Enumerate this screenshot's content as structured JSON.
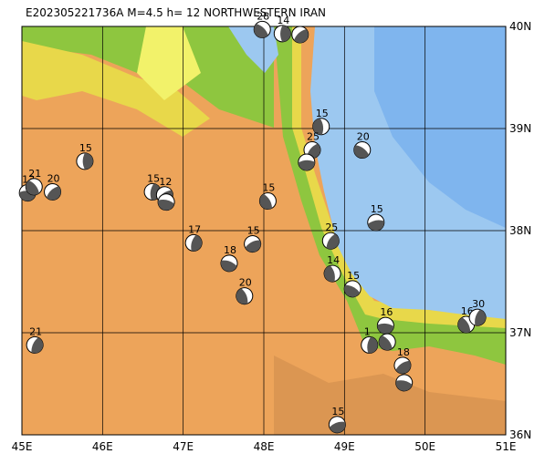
{
  "title": "E202305221736A  M=4.5  h=  12 NORTHWESTERN IRAN",
  "map": {
    "xlim": [
      45,
      51
    ],
    "ylim": [
      36,
      40
    ],
    "xticks": [
      {
        "value": 45,
        "label": "45E"
      },
      {
        "value": 46,
        "label": "46E"
      },
      {
        "value": 47,
        "label": "47E"
      },
      {
        "value": 48,
        "label": "48E"
      },
      {
        "value": 49,
        "label": "49E"
      },
      {
        "value": 50,
        "label": "50E"
      },
      {
        "value": 51,
        "label": "51E"
      }
    ],
    "yticks": [
      {
        "value": 36,
        "label": "36N"
      },
      {
        "value": 37,
        "label": "37N"
      },
      {
        "value": 38,
        "label": "38N"
      },
      {
        "value": 39,
        "label": "39N"
      },
      {
        "value": 40,
        "label": "40N"
      }
    ],
    "events": [
      {
        "lon": 45.78,
        "lat": 38.68,
        "label": "15"
      },
      {
        "lon": 45.38,
        "lat": 38.38,
        "label": "20"
      },
      {
        "lon": 45.07,
        "lat": 38.37,
        "label": "13"
      },
      {
        "lon": 45.15,
        "lat": 38.43,
        "label": "21"
      },
      {
        "lon": 46.62,
        "lat": 38.38,
        "label": "15"
      },
      {
        "lon": 46.77,
        "lat": 38.35,
        "label": "12"
      },
      {
        "lon": 46.79,
        "lat": 38.28,
        "label": null
      },
      {
        "lon": 48.05,
        "lat": 38.29,
        "label": "15"
      },
      {
        "lon": 47.13,
        "lat": 37.88,
        "label": "17"
      },
      {
        "lon": 47.86,
        "lat": 37.87,
        "label": "15"
      },
      {
        "lon": 47.57,
        "lat": 37.68,
        "label": "18"
      },
      {
        "lon": 47.76,
        "lat": 37.36,
        "label": "20"
      },
      {
        "lon": 45.16,
        "lat": 36.88,
        "label": "21"
      },
      {
        "lon": 48.91,
        "lat": 36.1,
        "label": "15"
      },
      {
        "lon": 49.1,
        "lat": 37.43,
        "label": "15"
      },
      {
        "lon": 48.85,
        "lat": 37.58,
        "label": "14"
      },
      {
        "lon": 48.83,
        "lat": 37.9,
        "label": "25"
      },
      {
        "lon": 49.39,
        "lat": 38.08,
        "label": "15"
      },
      {
        "lon": 49.22,
        "lat": 38.79,
        "label": "20"
      },
      {
        "lon": 48.71,
        "lat": 39.02,
        "label": "15"
      },
      {
        "lon": 48.6,
        "lat": 38.79,
        "label": "25"
      },
      {
        "lon": 48.53,
        "lat": 38.67,
        "label": null
      },
      {
        "lon": 47.98,
        "lat": 39.97,
        "label": "28"
      },
      {
        "lon": 48.23,
        "lat": 39.93,
        "label": "14"
      },
      {
        "lon": 48.45,
        "lat": 39.92,
        "label": null
      },
      {
        "lon": 49.51,
        "lat": 37.07,
        "label": "16"
      },
      {
        "lon": 49.53,
        "lat": 36.91,
        "label": null
      },
      {
        "lon": 49.31,
        "lat": 36.88,
        "label": "1"
      },
      {
        "lon": 49.72,
        "lat": 36.68,
        "label": "18"
      },
      {
        "lon": 49.74,
        "lat": 36.51,
        "label": null
      },
      {
        "lon": 50.51,
        "lat": 37.08,
        "label": "16"
      },
      {
        "lon": 50.65,
        "lat": 37.15,
        "label": "30"
      }
    ]
  }
}
